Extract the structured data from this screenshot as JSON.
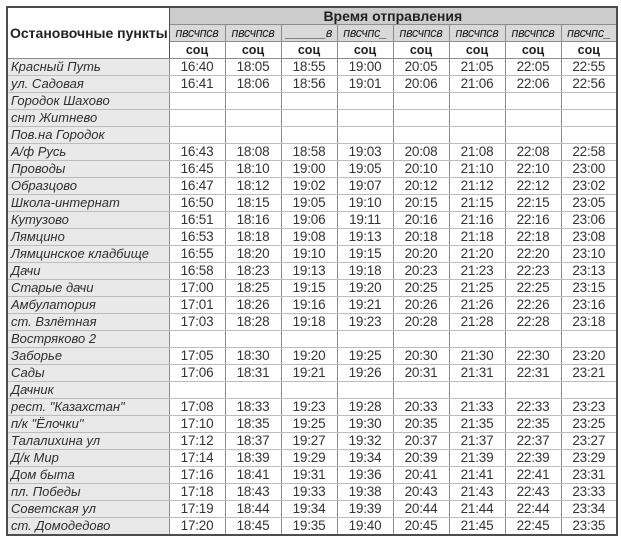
{
  "table": {
    "corner_header": "Остановочные пункты",
    "main_header": "Время отправления",
    "day_headers": [
      "пвсчпсв",
      "пвсчпсв",
      "______в",
      "пвсчпс_",
      "пвсчпсв",
      "пвсчпсв",
      "пвсчпсв",
      "пвсчпс_"
    ],
    "fare_headers": [
      "соц",
      "соц",
      "соц",
      "соц",
      "соц",
      "соц",
      "соц",
      "соц"
    ],
    "rows": [
      {
        "stop": "Красный Путь",
        "times": [
          "16:40",
          "18:05",
          "18:55",
          "19:00",
          "20:05",
          "21:05",
          "22:05",
          "22:55"
        ]
      },
      {
        "stop": "ул. Садовая",
        "times": [
          "16:41",
          "18:06",
          "18:56",
          "19:01",
          "20:06",
          "21:06",
          "22:06",
          "22:56"
        ]
      },
      {
        "stop": "Городок Шахово",
        "times": [
          "",
          "",
          "",
          "",
          "",
          "",
          "",
          ""
        ]
      },
      {
        "stop": "снт Житнево",
        "times": [
          "",
          "",
          "",
          "",
          "",
          "",
          "",
          ""
        ]
      },
      {
        "stop": "Пов.на Городок",
        "times": [
          "",
          "",
          "",
          "",
          "",
          "",
          "",
          ""
        ]
      },
      {
        "stop": "А/ф Русь",
        "times": [
          "16:43",
          "18:08",
          "18:58",
          "19:03",
          "20:08",
          "21:08",
          "22:08",
          "22:58"
        ]
      },
      {
        "stop": "Проводы",
        "times": [
          "16:45",
          "18:10",
          "19:00",
          "19:05",
          "20:10",
          "21:10",
          "22:10",
          "23:00"
        ]
      },
      {
        "stop": "Образцово",
        "times": [
          "16:47",
          "18:12",
          "19:02",
          "19:07",
          "20:12",
          "21:12",
          "22:12",
          "23:02"
        ]
      },
      {
        "stop": "Школа-интернат",
        "times": [
          "16:50",
          "18:15",
          "19:05",
          "19:10",
          "20:15",
          "21:15",
          "22:15",
          "23:05"
        ]
      },
      {
        "stop": "Кутузово",
        "times": [
          "16:51",
          "18:16",
          "19:06",
          "19:11",
          "20:16",
          "21:16",
          "22:16",
          "23:06"
        ]
      },
      {
        "stop": "Лямцино",
        "times": [
          "16:53",
          "18:18",
          "19:08",
          "19:13",
          "20:18",
          "21:18",
          "22:18",
          "23:08"
        ]
      },
      {
        "stop": "Лямцинское кладбище",
        "times": [
          "16:55",
          "18:20",
          "19:10",
          "19:15",
          "20:20",
          "21:20",
          "22:20",
          "23:10"
        ]
      },
      {
        "stop": "Дачи",
        "times": [
          "16:58",
          "18:23",
          "19:13",
          "19:18",
          "20:23",
          "21:23",
          "22:23",
          "23:13"
        ]
      },
      {
        "stop": "Старые дачи",
        "times": [
          "17:00",
          "18:25",
          "19:15",
          "19:20",
          "20:25",
          "21:25",
          "22:25",
          "23:15"
        ]
      },
      {
        "stop": "Амбулатория",
        "times": [
          "17:01",
          "18:26",
          "19:16",
          "19:21",
          "20:26",
          "21:26",
          "22:26",
          "23:16"
        ]
      },
      {
        "stop": "ст. Взлётная",
        "times": [
          "17:03",
          "18:28",
          "19:18",
          "19:23",
          "20:28",
          "21:28",
          "22:28",
          "23:18"
        ]
      },
      {
        "stop": "Востряково 2",
        "times": [
          "",
          "",
          "",
          "",
          "",
          "",
          "",
          ""
        ]
      },
      {
        "stop": "Заборье",
        "times": [
          "17:05",
          "18:30",
          "19:20",
          "19:25",
          "20:30",
          "21:30",
          "22:30",
          "23:20"
        ]
      },
      {
        "stop": "Сады",
        "times": [
          "17:06",
          "18:31",
          "19:21",
          "19:26",
          "20:31",
          "21:31",
          "22:31",
          "23:21"
        ]
      },
      {
        "stop": "Дачник",
        "times": [
          "",
          "",
          "",
          "",
          "",
          "",
          "",
          ""
        ]
      },
      {
        "stop": "рест. \"Казахстан\"",
        "times": [
          "17:08",
          "18:33",
          "19:23",
          "19:28",
          "20:33",
          "21:33",
          "22:33",
          "23:23"
        ]
      },
      {
        "stop": "п/к \"Ёлочки\"",
        "times": [
          "17:10",
          "18:35",
          "19:25",
          "19:30",
          "20:35",
          "21:35",
          "22:35",
          "23:25"
        ]
      },
      {
        "stop": "Талалихина ул",
        "times": [
          "17:12",
          "18:37",
          "19:27",
          "19:32",
          "20:37",
          "21:37",
          "22:37",
          "23:27"
        ]
      },
      {
        "stop": "Д/к Мир",
        "times": [
          "17:14",
          "18:39",
          "19:29",
          "19:34",
          "20:39",
          "21:39",
          "22:39",
          "23:29"
        ]
      },
      {
        "stop": "Дом быта",
        "times": [
          "17:16",
          "18:41",
          "19:31",
          "19:36",
          "20:41",
          "21:41",
          "22:41",
          "23:31"
        ]
      },
      {
        "stop": "пл. Победы",
        "times": [
          "17:18",
          "18:43",
          "19:33",
          "19:38",
          "20:43",
          "21:43",
          "22:43",
          "23:33"
        ]
      },
      {
        "stop": "Советская ул",
        "times": [
          "17:19",
          "18:44",
          "19:34",
          "19:39",
          "20:44",
          "21:44",
          "22:44",
          "23:34"
        ]
      },
      {
        "stop": "ст. Домодедово",
        "times": [
          "17:20",
          "18:45",
          "19:35",
          "19:40",
          "20:45",
          "21:45",
          "22:45",
          "23:35"
        ]
      }
    ]
  },
  "colors": {
    "header_bg": "#cccccc",
    "days_bg": "#d9d9d9",
    "stop_col_bg": "#e9e9e9",
    "cell_bg": "#ffffff",
    "text": "#333333",
    "border_outer": "#4d4d4d",
    "border_v": "#8c8c8c",
    "border_h": "#bdbdbd"
  }
}
